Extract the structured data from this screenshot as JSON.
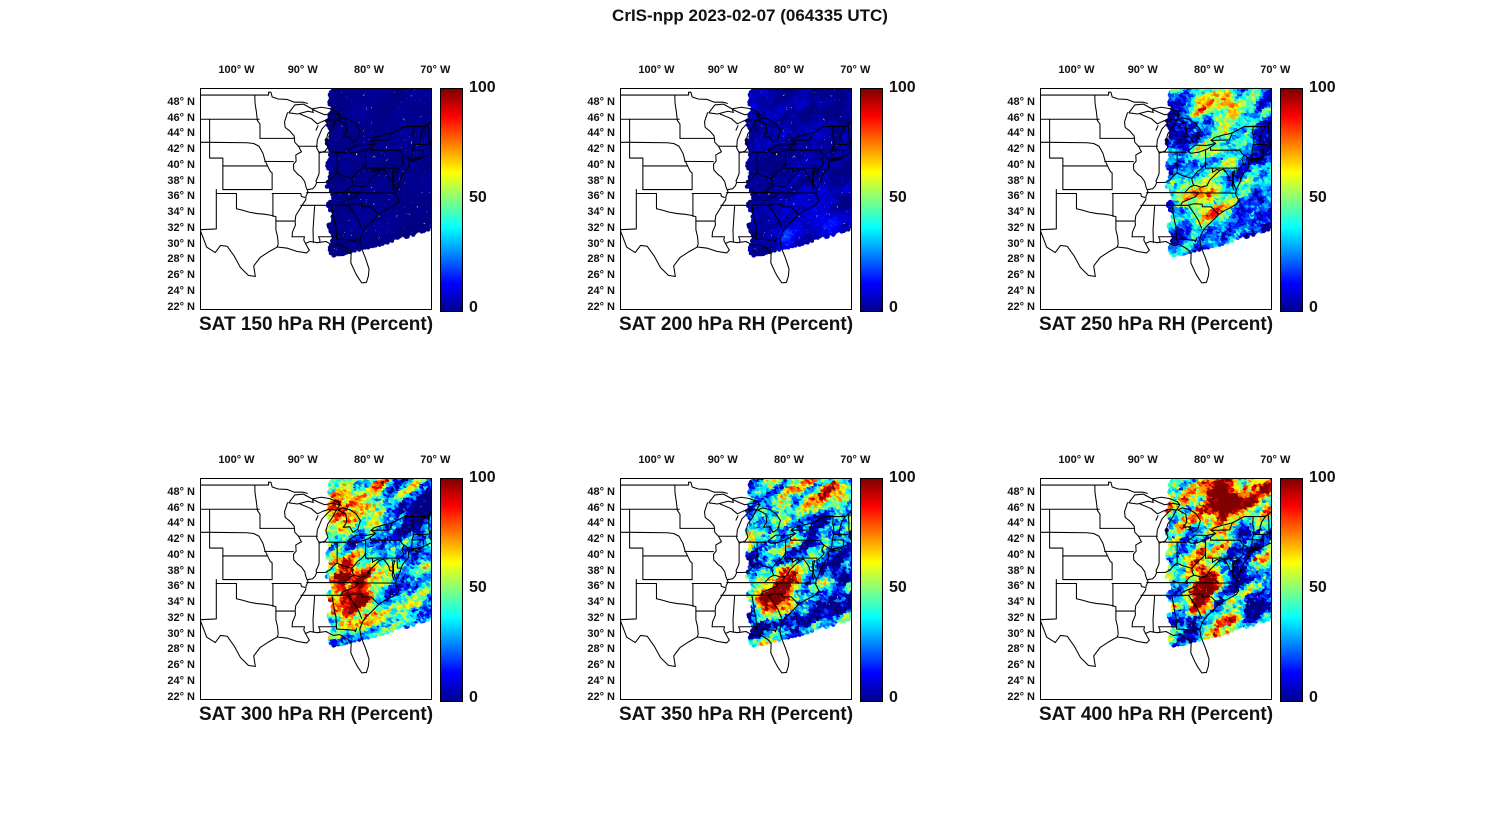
{
  "title": "CrIS-npp 2023-02-07 (064335 UTC)",
  "chart_data": {
    "type": "scatter",
    "figure_kind": "map_panels",
    "satellite": "CrIS-npp",
    "timestamp": "2023-02-07 (064335 UTC)",
    "variable": "RH (Percent)",
    "variable_long": "Relative Humidity",
    "units": "Percent",
    "colormap": "jet",
    "colorbar": {
      "min": 0,
      "max": 100,
      "tick_labels": [
        "100",
        "50",
        "0"
      ],
      "tick_values": [
        100,
        50,
        0
      ],
      "gradient_colors": [
        "#00008f",
        "#0000ff",
        "#00ffff",
        "#ffff00",
        "#ff0000",
        "#800000"
      ],
      "gradient_stops": [
        0,
        12.5,
        37.5,
        62.5,
        87.5,
        100
      ]
    },
    "axes": {
      "lon_tick_labels": [
        "100° W",
        "90° W",
        "80° W",
        "70° W"
      ],
      "lon_tick_values": [
        -100,
        -90,
        -80,
        -70
      ],
      "lat_tick_labels": [
        "48° N",
        "46° N",
        "44° N",
        "42° N",
        "40° N",
        "38° N",
        "36° N",
        "34° N",
        "32° N",
        "30° N",
        "28° N",
        "26° N",
        "24° N",
        "22° N"
      ],
      "lat_tick_values": [
        48,
        46,
        44,
        42,
        40,
        38,
        36,
        34,
        32,
        30,
        28,
        26,
        24,
        22
      ],
      "lon_range": [
        -105.5,
        -70.5
      ],
      "lat_range": [
        21.7,
        49.9
      ]
    },
    "swath": {
      "west_edge_lon_at_41N": -86.2,
      "west_edge_curvature": 0.0035,
      "edge_wiggle_deg": 0.28,
      "south_cut_lat_at_81.4W": 29.3,
      "south_cut_slope": 0.21,
      "south_cut_curvature": 0.004,
      "coverage": "Swath covers the eastern US east of a curved edge through the Ohio Valley; the bottom-right corner of the domain is outside the overpass"
    },
    "panels": [
      {
        "label": "SAT 150 hPa RH (Percent)",
        "level_hPa": 150,
        "summary": "RH ~0-5% everywhere in swath (uniform dark blue)",
        "mean_rh": 1,
        "variability": 1.5,
        "speckle": 1,
        "hotspots": []
      },
      {
        "label": "SAT 200 hPa RH (Percent)",
        "level_hPa": 200,
        "summary": "RH ~0-10%, dark blue with a few brighter specks in the far south",
        "mean_rh": 3,
        "variability": 4,
        "speckle": 3,
        "hotspots": [
          {
            "lon": -80.2,
            "lat": 30.8,
            "r": 1.2,
            "amp": 15
          },
          {
            "lon": -74.0,
            "lat": 33.0,
            "r": 1.5,
            "amp": 10
          }
        ]
      },
      {
        "label": "SAT 250 hPa RH (Percent)",
        "level_hPa": 250,
        "summary": "Mostly 0-40% with 40-80% streaks over the Great Lakes, Mid-Atlantic and Carolinas",
        "mean_rh": 20,
        "variability": 26,
        "speckle": 12,
        "hotspots": [
          {
            "lon": -76.5,
            "lat": 48.5,
            "r": 2.2,
            "amp": 38
          },
          {
            "lon": -81.0,
            "lat": 47.5,
            "r": 1.8,
            "amp": 32
          },
          {
            "lon": -80.0,
            "lat": 40.5,
            "r": 2.0,
            "amp": 32
          },
          {
            "lon": -76.0,
            "lat": 41.0,
            "r": 1.6,
            "amp": 26
          },
          {
            "lon": -81.5,
            "lat": 35.5,
            "r": 1.9,
            "amp": 42
          },
          {
            "lon": -78.5,
            "lat": 34.5,
            "r": 1.6,
            "amp": 36
          }
        ]
      },
      {
        "label": "SAT 300 hPa RH (Percent)",
        "level_hPa": 300,
        "summary": "Mixed 10-80%; moist band over the Southeast, drier over the Northeast",
        "mean_rh": 30,
        "variability": 34,
        "speckle": 14,
        "hotspots": [
          {
            "lon": -82.5,
            "lat": 34.0,
            "r": 2.4,
            "amp": 50
          },
          {
            "lon": -80.0,
            "lat": 36.0,
            "r": 2.0,
            "amp": 46
          },
          {
            "lon": -84.0,
            "lat": 37.5,
            "r": 1.8,
            "amp": 38
          },
          {
            "lon": -78.0,
            "lat": 47.0,
            "r": 2.6,
            "amp": 28
          },
          {
            "lon": -84.5,
            "lat": 47.0,
            "r": 1.8,
            "amp": 30
          },
          {
            "lon": -75.5,
            "lat": 45.0,
            "r": 2.0,
            "amp": -26
          },
          {
            "lon": -72.0,
            "lat": 44.0,
            "r": 2.2,
            "amp": -20
          }
        ]
      },
      {
        "label": "SAT 350 hPa RH (Percent)",
        "level_hPa": 350,
        "summary": "Mostly 10-50% with near-saturated pockets over the Carolinas and the far north",
        "mean_rh": 24,
        "variability": 36,
        "speckle": 16,
        "hotspots": [
          {
            "lon": -81.3,
            "lat": 35.8,
            "r": 1.7,
            "amp": 72
          },
          {
            "lon": -79.5,
            "lat": 37.3,
            "r": 1.4,
            "amp": 52
          },
          {
            "lon": -83.8,
            "lat": 34.2,
            "r": 1.4,
            "amp": 46
          },
          {
            "lon": -78.0,
            "lat": 49.0,
            "r": 2.4,
            "amp": 42
          },
          {
            "lon": -73.0,
            "lat": 48.0,
            "r": 1.8,
            "amp": 36
          },
          {
            "lon": -76.0,
            "lat": 43.5,
            "r": 2.4,
            "amp": -18
          },
          {
            "lon": -84.0,
            "lat": 31.0,
            "r": 1.6,
            "amp": -15
          }
        ]
      },
      {
        "label": "SAT 400 hPa RH (Percent)",
        "level_hPa": 400,
        "summary": "Widespread 30-80% with saturated pockets over the Northeast and Carolinas",
        "mean_rh": 34,
        "variability": 40,
        "speckle": 16,
        "hotspots": [
          {
            "lon": -79.0,
            "lat": 45.5,
            "r": 2.4,
            "amp": 55
          },
          {
            "lon": -77.0,
            "lat": 47.5,
            "r": 1.9,
            "amp": 50
          },
          {
            "lon": -80.5,
            "lat": 36.0,
            "r": 1.7,
            "amp": 60
          },
          {
            "lon": -82.0,
            "lat": 34.5,
            "r": 1.4,
            "amp": 50
          },
          {
            "lon": -72.5,
            "lat": 48.5,
            "r": 1.8,
            "amp": 45
          },
          {
            "lon": -77.0,
            "lat": 40.5,
            "r": 2.0,
            "amp": -18
          },
          {
            "lon": -82.5,
            "lat": 30.5,
            "r": 1.8,
            "amp": -20
          }
        ]
      }
    ]
  }
}
